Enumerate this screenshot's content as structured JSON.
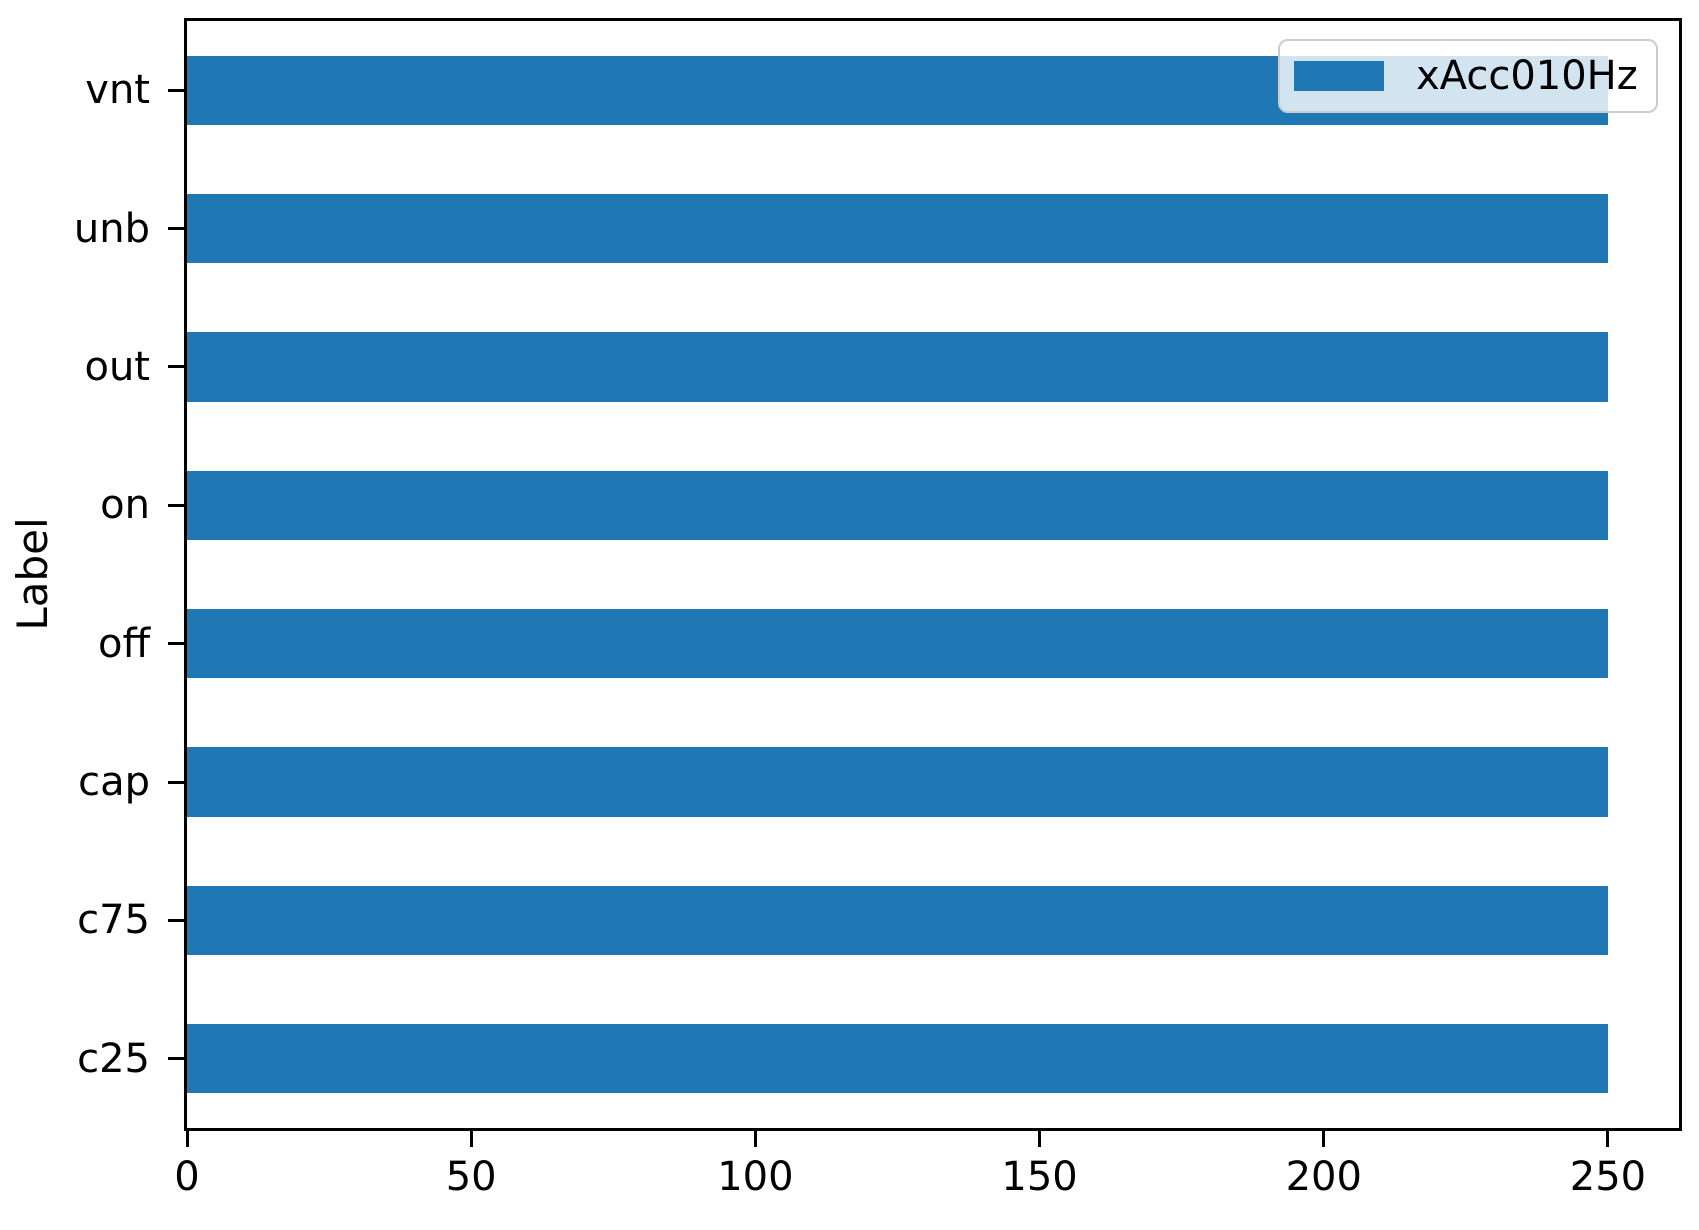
{
  "chart_data": {
    "type": "bar",
    "orientation": "horizontal",
    "title": "",
    "xlabel": "",
    "ylabel": "Label",
    "category_order": "top_to_bottom",
    "categories": [
      "vnt",
      "unb",
      "out",
      "on",
      "off",
      "cap",
      "c75",
      "c25"
    ],
    "series": [
      {
        "name": "xAcc010Hz",
        "color": "#1f77b4",
        "values": [
          250,
          250,
          250,
          250,
          250,
          250,
          250,
          250
        ]
      }
    ],
    "xlim": [
      0,
      262.5
    ],
    "xticks": [
      0,
      50,
      100,
      150,
      200,
      250
    ],
    "grid": false,
    "legend": {
      "position": "upper right",
      "entries": [
        "xAcc010Hz"
      ],
      "background": "rgba(255,255,255,0.8)",
      "border_color": "#cccccc"
    },
    "colors": {
      "bar": "#1f77b4",
      "axis": "#000000",
      "text": "#000000",
      "background": "#ffffff"
    }
  }
}
